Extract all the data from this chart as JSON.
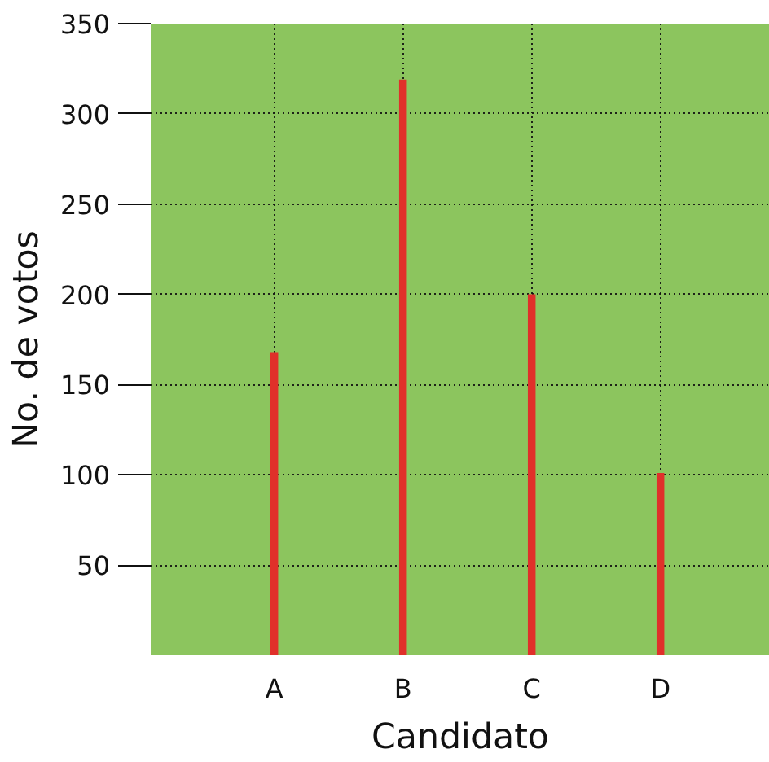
{
  "chart_data": {
    "type": "bar",
    "xlabel": "Candidato",
    "ylabel": "No. de votos",
    "categories": [
      "A",
      "B",
      "C",
      "D"
    ],
    "values": [
      168,
      319,
      200,
      101
    ],
    "color": "#e0302a",
    "ylim": [
      0,
      350
    ],
    "yticks": [
      50,
      100,
      150,
      200,
      250,
      300,
      350
    ],
    "grid": true
  }
}
